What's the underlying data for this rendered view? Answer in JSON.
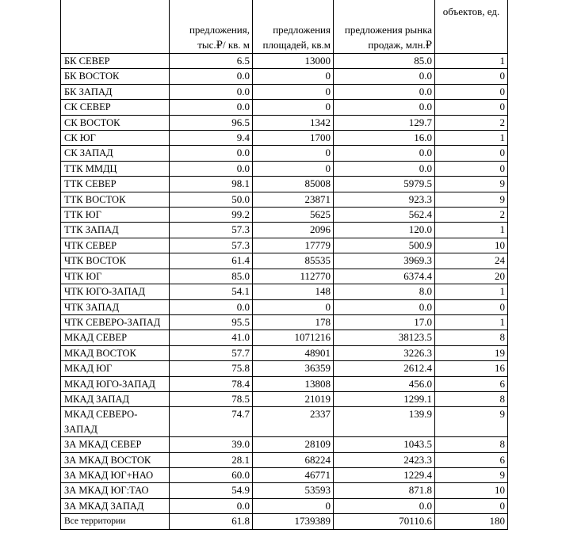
{
  "table": {
    "headers": [
      "",
      "предложения, тыс.₽/ кв. м",
      "предложения площадей, кв.м",
      "предложения рынка продаж, млн.₽",
      "объектов, ед."
    ],
    "header_lines": [
      [
        "",
        ""
      ],
      [
        "предложения,",
        "тыс.₽/ кв. м"
      ],
      [
        "предложения",
        "площадей, кв.м"
      ],
      [
        "предложения рынка",
        "продаж, млн.₽"
      ],
      [
        "объектов, ед.",
        ""
      ]
    ],
    "rows": [
      [
        "БК СЕВЕР",
        "6.5",
        "13000",
        "85.0",
        "1"
      ],
      [
        "БК ВОСТОК",
        "0.0",
        "0",
        "0.0",
        "0"
      ],
      [
        "БК ЗАПАД",
        "0.0",
        "0",
        "0.0",
        "0"
      ],
      [
        "СК СЕВЕР",
        "0.0",
        "0",
        "0.0",
        "0"
      ],
      [
        "СК ВОСТОК",
        "96.5",
        "1342",
        "129.7",
        "2"
      ],
      [
        "СК ЮГ",
        "9.4",
        "1700",
        "16.0",
        "1"
      ],
      [
        "СК ЗАПАД",
        "0.0",
        "0",
        "0.0",
        "0"
      ],
      [
        "ТТК ММДЦ",
        "0.0",
        "0",
        "0.0",
        "0"
      ],
      [
        "ТТК СЕВЕР",
        "98.1",
        "85008",
        "5979.5",
        "9"
      ],
      [
        "ТТК ВОСТОК",
        "50.0",
        "23871",
        "923.3",
        "9"
      ],
      [
        "ТТК ЮГ",
        "99.2",
        "5625",
        "562.4",
        "2"
      ],
      [
        "ТТК ЗАПАД",
        "57.3",
        "2096",
        "120.0",
        "1"
      ],
      [
        "ЧТК СЕВЕР",
        "57.3",
        "17779",
        "500.9",
        "10"
      ],
      [
        "ЧТК ВОСТОК",
        "61.4",
        "85535",
        "3969.3",
        "24"
      ],
      [
        "ЧТК ЮГ",
        "85.0",
        "112770",
        "6374.4",
        "20"
      ],
      [
        "ЧТК ЮГО-ЗАПАД",
        "54.1",
        "148",
        "8.0",
        "1"
      ],
      [
        "ЧТК ЗАПАД",
        "0.0",
        "0",
        "0.0",
        "0"
      ],
      [
        "ЧТК СЕВЕРО-ЗАПАД",
        "95.5",
        "178",
        "17.0",
        "1"
      ],
      [
        "МКАД СЕВЕР",
        "41.0",
        "1071216",
        "38123.5",
        "8"
      ],
      [
        "МКАД ВОСТОК",
        "57.7",
        "48901",
        "3226.3",
        "19"
      ],
      [
        "МКАД ЮГ",
        "75.8",
        "36359",
        "2612.4",
        "16"
      ],
      [
        "МКАД ЮГО-ЗАПАД",
        "78.4",
        "13808",
        "456.0",
        "6"
      ],
      [
        "МКАД ЗАПАД",
        "78.5",
        "21019",
        "1299.1",
        "8"
      ],
      [
        "МКАД СЕВЕРО-ЗАПАД",
        "74.7",
        "2337",
        "139.9",
        "9"
      ],
      [
        "ЗА МКАД СЕВЕР",
        "39.0",
        "28109",
        "1043.5",
        "8"
      ],
      [
        "ЗА МКАД ВОСТОК",
        "28.1",
        "68224",
        "2423.3",
        "6"
      ],
      [
        "ЗА МКАД ЮГ+НАО",
        "60.0",
        "46771",
        "1229.4",
        "9"
      ],
      [
        "ЗА МКАД ЮГ:ТАО",
        "54.9",
        "53593",
        "871.8",
        "10"
      ],
      [
        "ЗА МКАД ЗАПАД",
        "0.0",
        "0",
        "0.0",
        "0"
      ]
    ],
    "total": [
      "Все территории",
      "61.8",
      "1739389",
      "70110.6",
      "180"
    ]
  }
}
